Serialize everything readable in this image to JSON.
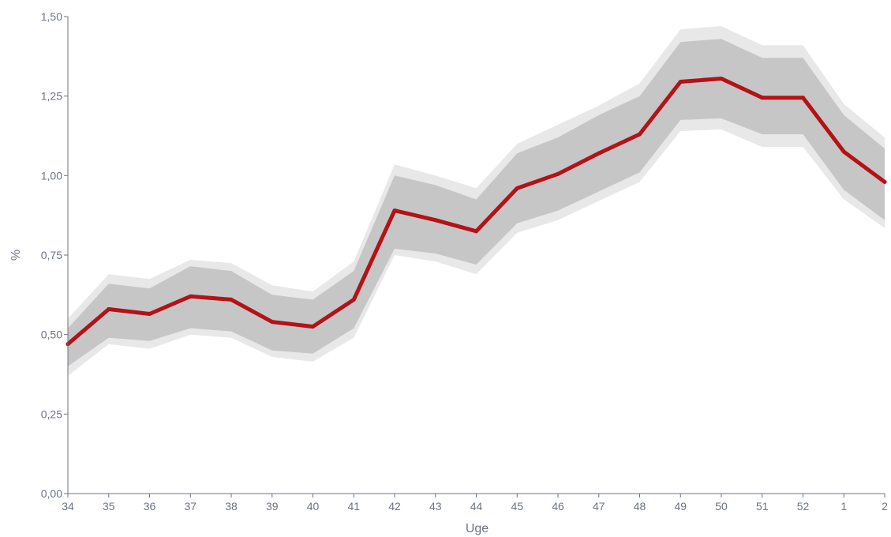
{
  "chart_data": {
    "type": "line",
    "title": "",
    "xlabel": "Uge",
    "ylabel": "%",
    "categories": [
      "34",
      "35",
      "36",
      "37",
      "38",
      "39",
      "40",
      "41",
      "42",
      "43",
      "44",
      "45",
      "46",
      "47",
      "48",
      "49",
      "50",
      "51",
      "52",
      "1",
      "2"
    ],
    "ylim": [
      0,
      1.5
    ],
    "yticks": [
      0,
      0.25,
      0.5,
      0.75,
      1.0,
      1.25,
      1.5
    ],
    "ytick_labels": [
      "0,00",
      "0,25",
      "0,50",
      "0,75",
      "1,00",
      "1,25",
      "1,50"
    ],
    "grid": false,
    "legend": "none",
    "series": [
      {
        "values": [
          0.47,
          0.58,
          0.565,
          0.62,
          0.61,
          0.54,
          0.525,
          0.61,
          0.89,
          0.86,
          0.825,
          0.96,
          1.005,
          1.07,
          1.13,
          1.295,
          1.305,
          1.245,
          1.245,
          1.075,
          0.98
        ],
        "color": "#b31217"
      }
    ],
    "inner_band": {
      "lower": [
        0.4,
        0.49,
        0.48,
        0.52,
        0.51,
        0.45,
        0.44,
        0.52,
        0.77,
        0.755,
        0.72,
        0.85,
        0.89,
        0.95,
        1.01,
        1.175,
        1.18,
        1.13,
        1.13,
        0.955,
        0.86
      ],
      "upper": [
        0.52,
        0.66,
        0.645,
        0.715,
        0.7,
        0.625,
        0.61,
        0.7,
        1.0,
        0.97,
        0.925,
        1.07,
        1.12,
        1.19,
        1.25,
        1.42,
        1.43,
        1.37,
        1.37,
        1.19,
        1.085
      ],
      "color": "#c6c6c6"
    },
    "outer_band": {
      "lower": [
        0.37,
        0.47,
        0.455,
        0.5,
        0.49,
        0.43,
        0.415,
        0.49,
        0.75,
        0.73,
        0.69,
        0.82,
        0.86,
        0.92,
        0.98,
        1.14,
        1.145,
        1.09,
        1.09,
        0.925,
        0.835
      ],
      "upper": [
        0.55,
        0.69,
        0.675,
        0.735,
        0.725,
        0.655,
        0.635,
        0.73,
        1.035,
        1.0,
        0.96,
        1.1,
        1.16,
        1.22,
        1.29,
        1.46,
        1.47,
        1.41,
        1.41,
        1.225,
        1.12
      ],
      "color": "#e8e8e8"
    },
    "axis_color": "#6b7385"
  }
}
